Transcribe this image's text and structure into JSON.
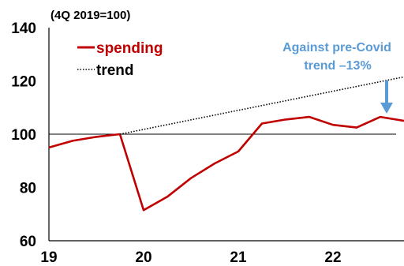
{
  "chart_data": {
    "type": "line",
    "unit_note": "(4Q 2019=100)",
    "y_ticks": [
      "60",
      "80",
      "100",
      "120",
      "140"
    ],
    "ylim": [
      60,
      140
    ],
    "x_ticks": [
      "19",
      "20",
      "21",
      "22"
    ],
    "x_tick_positions": [
      2019,
      2020,
      2021,
      2022
    ],
    "xlim": [
      2019,
      2022.75
    ],
    "legend_placement": "top-left",
    "reference_line": 100,
    "series": [
      {
        "name": "spending",
        "color": "#c00000",
        "style": "solid",
        "x": [
          2019.0,
          2019.25,
          2019.5,
          2019.75,
          2020.0,
          2020.25,
          2020.5,
          2020.75,
          2021.0,
          2021.25,
          2021.5,
          2021.75,
          2022.0,
          2022.25,
          2022.5,
          2022.75
        ],
        "values": [
          95,
          97.5,
          99,
          100,
          71.5,
          76.5,
          83.5,
          89,
          93.5,
          104,
          105.5,
          106.5,
          103.5,
          102.5,
          106.5,
          105
        ]
      },
      {
        "name": "trend",
        "color": "#000000",
        "style": "dotted",
        "x": [
          2019.75,
          2022.75
        ],
        "values": [
          100,
          121.5
        ]
      }
    ],
    "annotation": {
      "lines": [
        "Against pre-Covid",
        "trend –13%"
      ],
      "color": "#5b9bd5",
      "points_to": {
        "x": 2022.5,
        "y": 107
      }
    }
  }
}
